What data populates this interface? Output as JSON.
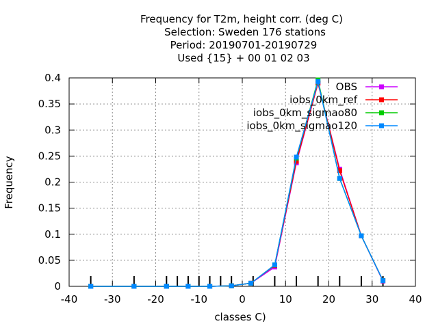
{
  "chart_data": {
    "type": "line",
    "title_lines": [
      "Frequency  for T2m, height corr. (deg C)",
      "Selection: Sweden    176 stations",
      "Period: 20190701-20190729",
      "Used {15} + 00 01 02 03"
    ],
    "xlabel": "classes C)",
    "ylabel": "Frequency",
    "xlim": [
      -40,
      40
    ],
    "ylim": [
      0,
      0.4
    ],
    "x_ticks": [
      -40,
      -30,
      -20,
      -10,
      0,
      10,
      20,
      30,
      40
    ],
    "y_ticks": [
      0,
      0.05,
      0.1,
      0.15,
      0.2,
      0.25,
      0.3,
      0.35,
      0.4
    ],
    "grid": true,
    "legend_position": "top-right",
    "x": [
      -35,
      -25,
      -17.5,
      -12.5,
      -7.5,
      -2.5,
      2,
      7.5,
      12.5,
      17.5,
      22.5,
      27.5,
      32.5
    ],
    "bottom_marker_x": [
      -35,
      -25,
      -17.5,
      -15,
      -12.5,
      -10,
      -7.5,
      -5,
      -2.5,
      2.5,
      7.5,
      12.5,
      17.5,
      22.5,
      27.5,
      32.5
    ],
    "series": [
      {
        "name": "OBS",
        "color": "#cc00ff",
        "values": [
          0,
          0,
          0,
          0,
          0,
          0.001,
          0.006,
          0.037,
          0.237,
          0.39,
          0.225,
          0.097,
          0.01
        ]
      },
      {
        "name": "iobs_0km_ref",
        "color": "#ff0000",
        "values": [
          0,
          0,
          0,
          0,
          0,
          0.001,
          0.006,
          0.04,
          0.24,
          0.39,
          0.222,
          0.097,
          0.011
        ]
      },
      {
        "name": "iobs_0km_sigmao80",
        "color": "#00cc00",
        "values": [
          0,
          0,
          0,
          0,
          0,
          0.001,
          0.006,
          0.041,
          0.246,
          0.396,
          0.207,
          0.097,
          0.011
        ]
      },
      {
        "name": "iobs_0km_sigmao120",
        "color": "#0088ff",
        "values": [
          0,
          0,
          0,
          0,
          0,
          0.001,
          0.006,
          0.041,
          0.248,
          0.393,
          0.207,
          0.097,
          0.011
        ]
      }
    ]
  }
}
